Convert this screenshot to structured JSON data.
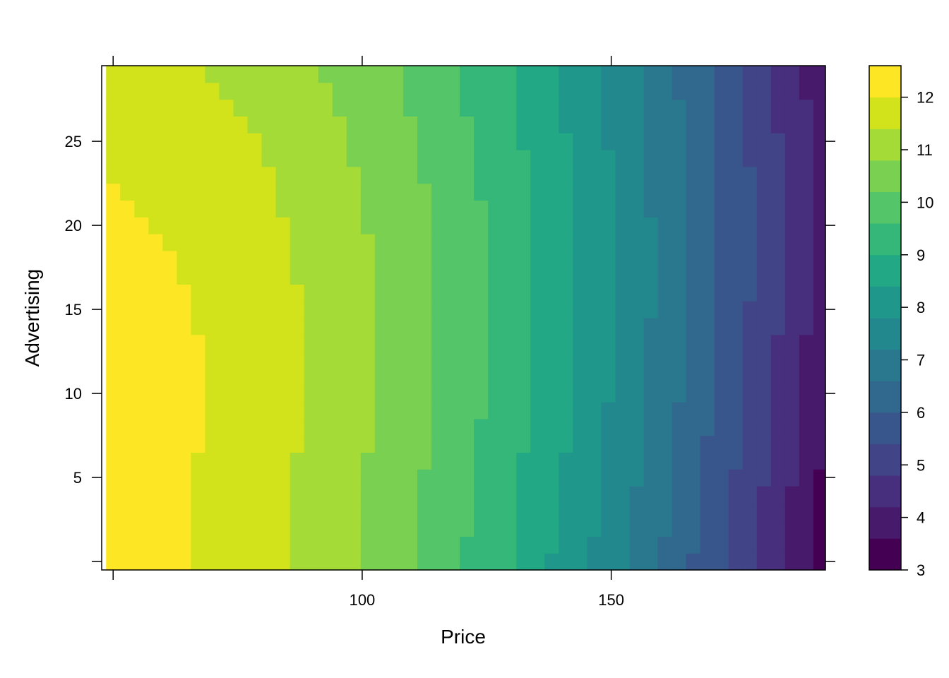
{
  "chart_data": {
    "type": "heatmap",
    "title": "",
    "xlabel": "Price",
    "ylabel": "Advertising",
    "xlim": [
      47.7,
      193
    ],
    "ylim": [
      -0.5,
      29.5
    ],
    "x_ticks": [
      100,
      150
    ],
    "y_ticks": [
      5,
      10,
      15,
      20,
      25
    ],
    "grid": false,
    "colorkey": {
      "position": "right",
      "levels": [
        3,
        3.5,
        4,
        4.5,
        5,
        5.5,
        6,
        6.5,
        7,
        7.5,
        8,
        8.5,
        9,
        9.5,
        10,
        10.5,
        11,
        11.5,
        12,
        12.6
      ],
      "tick_values": [
        3,
        4,
        5,
        6,
        7,
        8,
        9,
        10,
        11,
        12
      ],
      "tick_labels": [
        "3",
        "4",
        "5",
        "6",
        "7",
        "8",
        "9",
        "10",
        "11",
        "12"
      ],
      "colors": [
        "#440154",
        "#481A6C",
        "#472F7D",
        "#414487",
        "#39568C",
        "#31688E",
        "#2A788E",
        "#23888E",
        "#1F988B",
        "#22A884",
        "#35B779",
        "#54C568",
        "#7AD151",
        "#A5DB36",
        "#D2E21B",
        "#FDE725"
      ]
    },
    "surface": {
      "description": "Predicted value over Price (x) and Advertising (y)",
      "x_range": [
        50,
        192
      ],
      "y_range": [
        0,
        29
      ],
      "min_value": 3.2,
      "max_value": 12.4,
      "peak": {
        "x": 50,
        "y": 10
      },
      "trough": {
        "x": 180,
        "y": 0
      }
    },
    "x_tick_labels": [
      "100",
      "150"
    ],
    "y_tick_labels": [
      "5",
      "10",
      "15",
      "20",
      "25"
    ]
  }
}
